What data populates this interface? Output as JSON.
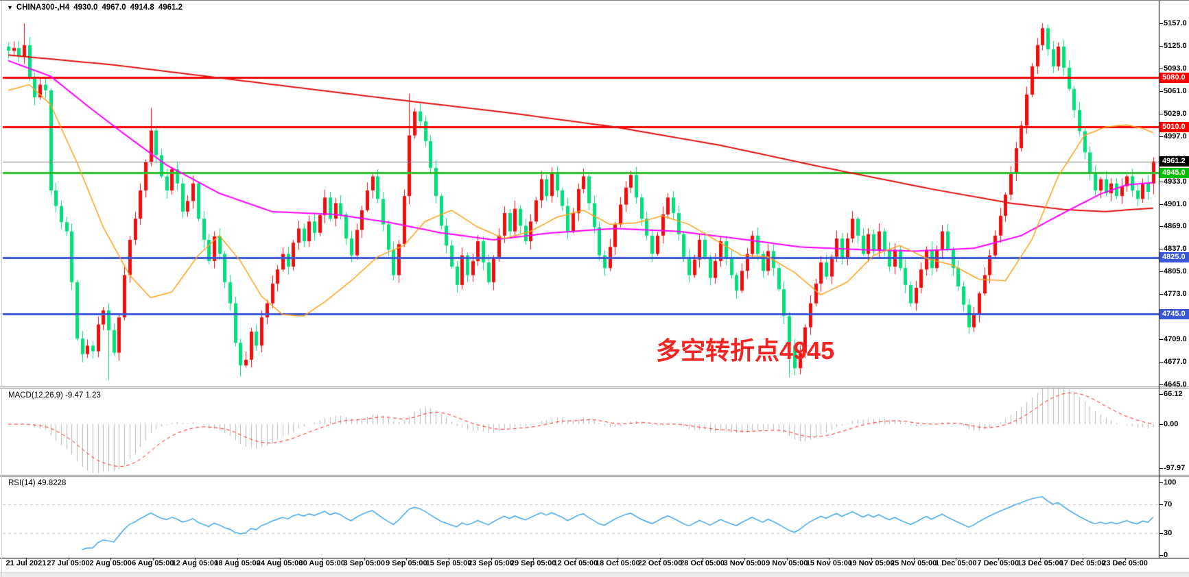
{
  "title_bar": {
    "dropdown_icon": "▼",
    "symbol_period": "CHINA300-,H4",
    "open": "4930.0",
    "high": "4967.0",
    "low": "4914.8",
    "close": "4961.2"
  },
  "annotation": {
    "text": "多空转折点4945",
    "color": "#f22424"
  },
  "panels": {
    "macd": {
      "label": "MACD(12,26,9) -9.47 1.23",
      "value": -9.47,
      "signal_value": 1.23
    },
    "rsi": {
      "label": "RSI(14) 49.8228",
      "value": 49.8228
    }
  },
  "price_axis": {
    "tick_labels": [
      "5157.0",
      "5125.0",
      "5093.0",
      "5061.0",
      "5029.0",
      "4997.0",
      "4965.0",
      "4933.0",
      "4901.0",
      "4869.0",
      "4837.0",
      "4805.0",
      "4773.0",
      "4741.0",
      "4709.0",
      "4677.0",
      "4645.0"
    ],
    "badges": [
      {
        "text": "5080.0",
        "price": 5080,
        "bg": "#ff0000"
      },
      {
        "text": "5010.0",
        "price": 5010,
        "bg": "#ff0000"
      },
      {
        "text": "4961.2",
        "price": 4961.2,
        "bg": "#000000"
      },
      {
        "text": "4945.0",
        "price": 4945,
        "bg": "#00bf00"
      },
      {
        "text": "4825.0",
        "price": 4825,
        "bg": "#3a57d8"
      },
      {
        "text": "4745.0",
        "price": 4745,
        "bg": "#3a57d8"
      }
    ]
  },
  "sub_axis": {
    "macd_labels": [
      {
        "text": "66.12",
        "value": 66.12
      },
      {
        "text": "0.00",
        "value": 0
      },
      {
        "text": "-97.97",
        "value": -97.97
      }
    ],
    "rsi_labels": [
      {
        "text": "100",
        "value": 100
      },
      {
        "text": "70",
        "value": 70
      },
      {
        "text": "30",
        "value": 30
      },
      {
        "text": "0",
        "value": 0
      }
    ]
  },
  "time_axis": {
    "labels": [
      "21 Jul 2021",
      "27 Jul 05:00",
      "2 Aug 05:00",
      "6 Aug 05:00",
      "12 Aug 05:00",
      "18 Aug 05:00",
      "24 Aug 05:00",
      "30 Aug 05:00",
      "3 Sep 05:00",
      "9 Sep 05:00",
      "15 Sep 05:00",
      "23 Sep 05:00",
      "29 Sep 05:00",
      "12 Oct 05:00",
      "18 Oct 05:00",
      "22 Oct 05:00",
      "28 Oct 05:00",
      "3 Nov 05:00",
      "9 Nov 05:00",
      "15 Nov 05:00",
      "19 Nov 05:00",
      "25 Nov 05:00",
      "1 Dec 05:00",
      "7 Dec 05:00",
      "13 Dec 05:00",
      "17 Dec 05:00",
      "23 Dec 05:00"
    ]
  },
  "chart_data": {
    "type": "candlestick",
    "symbol": "CHINA300-",
    "timeframe": "H4",
    "title": "CHINA300-,H4",
    "ylim": [
      4645,
      5157
    ],
    "bull_color": "#f20c0c",
    "bear_color": "#00e07a",
    "price_levels": [
      {
        "price": 5080,
        "color": "#ff0000",
        "width": 3
      },
      {
        "price": 5010,
        "color": "#ff0000",
        "width": 3
      },
      {
        "price": 4961.2,
        "color": "#808080",
        "width": 1
      },
      {
        "price": 4945,
        "color": "#2fbf2f",
        "width": 3
      },
      {
        "price": 4825,
        "color": "#3a57d8",
        "width": 3
      },
      {
        "price": 4745,
        "color": "#3a57d8",
        "width": 3
      }
    ],
    "closes": [
      5118,
      5122,
      5110,
      5126,
      5080,
      5052,
      5070,
      5062,
      4920,
      4898,
      4875,
      4862,
      4790,
      4710,
      4688,
      4700,
      4692,
      4730,
      4750,
      4722,
      4690,
      4740,
      4800,
      4850,
      4880,
      4920,
      4960,
      5005,
      4970,
      4940,
      4920,
      4950,
      4930,
      4890,
      4905,
      4930,
      4880,
      4850,
      4820,
      4855,
      4830,
      4790,
      4760,
      4704,
      4672,
      4680,
      4720,
      4700,
      4740,
      4760,
      4788,
      4808,
      4830,
      4812,
      4846,
      4866,
      4848,
      4876,
      4860,
      4885,
      4910,
      4880,
      4902,
      4886,
      4852,
      4828,
      4864,
      4892,
      4920,
      4940,
      4908,
      4872,
      4836,
      4800,
      4844,
      4912,
      4998,
      5032,
      5018,
      4990,
      4952,
      4912,
      4870,
      4842,
      4812,
      4786,
      4828,
      4800,
      4820,
      4848,
      4818,
      4790,
      4824,
      4856,
      4888,
      4862,
      4894,
      4870,
      4848,
      4876,
      4906,
      4936,
      4912,
      4944,
      4920,
      4898,
      4862,
      4888,
      4922,
      4940,
      4902,
      4868,
      4828,
      4810,
      4840,
      4872,
      4900,
      4924,
      4942,
      4910,
      4880,
      4856,
      4830,
      4856,
      4886,
      4910,
      4888,
      4858,
      4826,
      4800,
      4822,
      4850,
      4826,
      4796,
      4820,
      4848,
      4824,
      4800,
      4778,
      4806,
      4830,
      4856,
      4830,
      4806,
      4834,
      4810,
      4780,
      4742,
      4700,
      4668,
      4690,
      4726,
      4760,
      4788,
      4818,
      4798,
      4826,
      4852,
      4824,
      4852,
      4880,
      4856,
      4830,
      4858,
      4834,
      4862,
      4836,
      4812,
      4836,
      4810,
      4786,
      4760,
      4782,
      4808,
      4836,
      4810,
      4836,
      4862,
      4836,
      4810,
      4784,
      4758,
      4726,
      4744,
      4774,
      4800,
      4828,
      4856,
      4884,
      4914,
      4944,
      4980,
      5012,
      5056,
      5096,
      5126,
      5150,
      5120,
      5096,
      5124,
      5094,
      5064,
      5034,
      5004,
      4974,
      4944,
      4920,
      4936,
      4916,
      4930,
      4912,
      4926,
      4940,
      4920,
      4908,
      4930,
      4918,
      4961.2
    ],
    "wick_overrides": {
      "3": {
        "high": 5157
      },
      "19": {
        "low": 4651
      },
      "27": {
        "high": 5037
      },
      "44": {
        "low": 4656
      },
      "76": {
        "high": 5057
      },
      "148": {
        "low": 4655
      },
      "196": {
        "high": 5157
      },
      "217": {
        "open": 4930,
        "high": 4967,
        "low": 4914.8,
        "close": 4961.2
      }
    },
    "moving_averages": [
      {
        "name": "ma-slow-red",
        "color": "#e01010",
        "width": 2,
        "anchors": [
          [
            0,
            5112
          ],
          [
            20,
            5098
          ],
          [
            45,
            5075
          ],
          [
            70,
            5052
          ],
          [
            95,
            5030
          ],
          [
            115,
            5010
          ],
          [
            135,
            4984
          ],
          [
            155,
            4952
          ],
          [
            175,
            4922
          ],
          [
            190,
            4902
          ],
          [
            200,
            4893
          ],
          [
            208,
            4890
          ],
          [
            213,
            4893
          ],
          [
            217,
            4895
          ]
        ]
      },
      {
        "name": "ma-mid-magenta",
        "color": "#ff00ff",
        "width": 2,
        "anchors": [
          [
            0,
            5104
          ],
          [
            8,
            5082
          ],
          [
            15,
            5040
          ],
          [
            22,
            5000
          ],
          [
            30,
            4956
          ],
          [
            40,
            4916
          ],
          [
            50,
            4890
          ],
          [
            62,
            4886
          ],
          [
            72,
            4875
          ],
          [
            82,
            4860
          ],
          [
            92,
            4850
          ],
          [
            103,
            4860
          ],
          [
            115,
            4866
          ],
          [
            127,
            4862
          ],
          [
            138,
            4852
          ],
          [
            150,
            4840
          ],
          [
            162,
            4836
          ],
          [
            172,
            4834
          ],
          [
            183,
            4838
          ],
          [
            192,
            4856
          ],
          [
            200,
            4888
          ],
          [
            207,
            4915
          ],
          [
            212,
            4928
          ],
          [
            217,
            4931
          ]
        ]
      },
      {
        "name": "ma-fast-orange",
        "color": "#ffa11a",
        "width": 1.5,
        "anchors": [
          [
            0,
            5062
          ],
          [
            4,
            5070
          ],
          [
            8,
            5042
          ],
          [
            13,
            4960
          ],
          [
            18,
            4868
          ],
          [
            23,
            4800
          ],
          [
            27,
            4768
          ],
          [
            31,
            4776
          ],
          [
            36,
            4828
          ],
          [
            40,
            4856
          ],
          [
            44,
            4820
          ],
          [
            48,
            4770
          ],
          [
            52,
            4744
          ],
          [
            56,
            4742
          ],
          [
            60,
            4762
          ],
          [
            65,
            4792
          ],
          [
            70,
            4826
          ],
          [
            75,
            4842
          ],
          [
            79,
            4876
          ],
          [
            84,
            4892
          ],
          [
            89,
            4868
          ],
          [
            94,
            4852
          ],
          [
            99,
            4862
          ],
          [
            104,
            4882
          ],
          [
            109,
            4892
          ],
          [
            114,
            4872
          ],
          [
            119,
            4874
          ],
          [
            124,
            4884
          ],
          [
            129,
            4872
          ],
          [
            134,
            4850
          ],
          [
            139,
            4828
          ],
          [
            144,
            4826
          ],
          [
            149,
            4804
          ],
          [
            154,
            4772
          ],
          [
            159,
            4790
          ],
          [
            164,
            4828
          ],
          [
            169,
            4842
          ],
          [
            174,
            4824
          ],
          [
            179,
            4814
          ],
          [
            184,
            4794
          ],
          [
            189,
            4792
          ],
          [
            194,
            4850
          ],
          [
            199,
            4940
          ],
          [
            204,
            4998
          ],
          [
            208,
            5010
          ],
          [
            212,
            5013
          ],
          [
            215,
            5008
          ],
          [
            217,
            5002
          ]
        ]
      }
    ],
    "macd": {
      "fast": 12,
      "slow": 26,
      "signal": 9,
      "hist_color": "#b8b8b8",
      "signal_color": "#ff2222",
      "ylim": [
        -111,
        79
      ],
      "axis_values": [
        66.12,
        0,
        -97.97
      ]
    },
    "rsi": {
      "period": 14,
      "color": "#37a0e8",
      "ylim": [
        0,
        100
      ],
      "levels": [
        70,
        30
      ],
      "level_color": "#c4c4c4"
    }
  }
}
